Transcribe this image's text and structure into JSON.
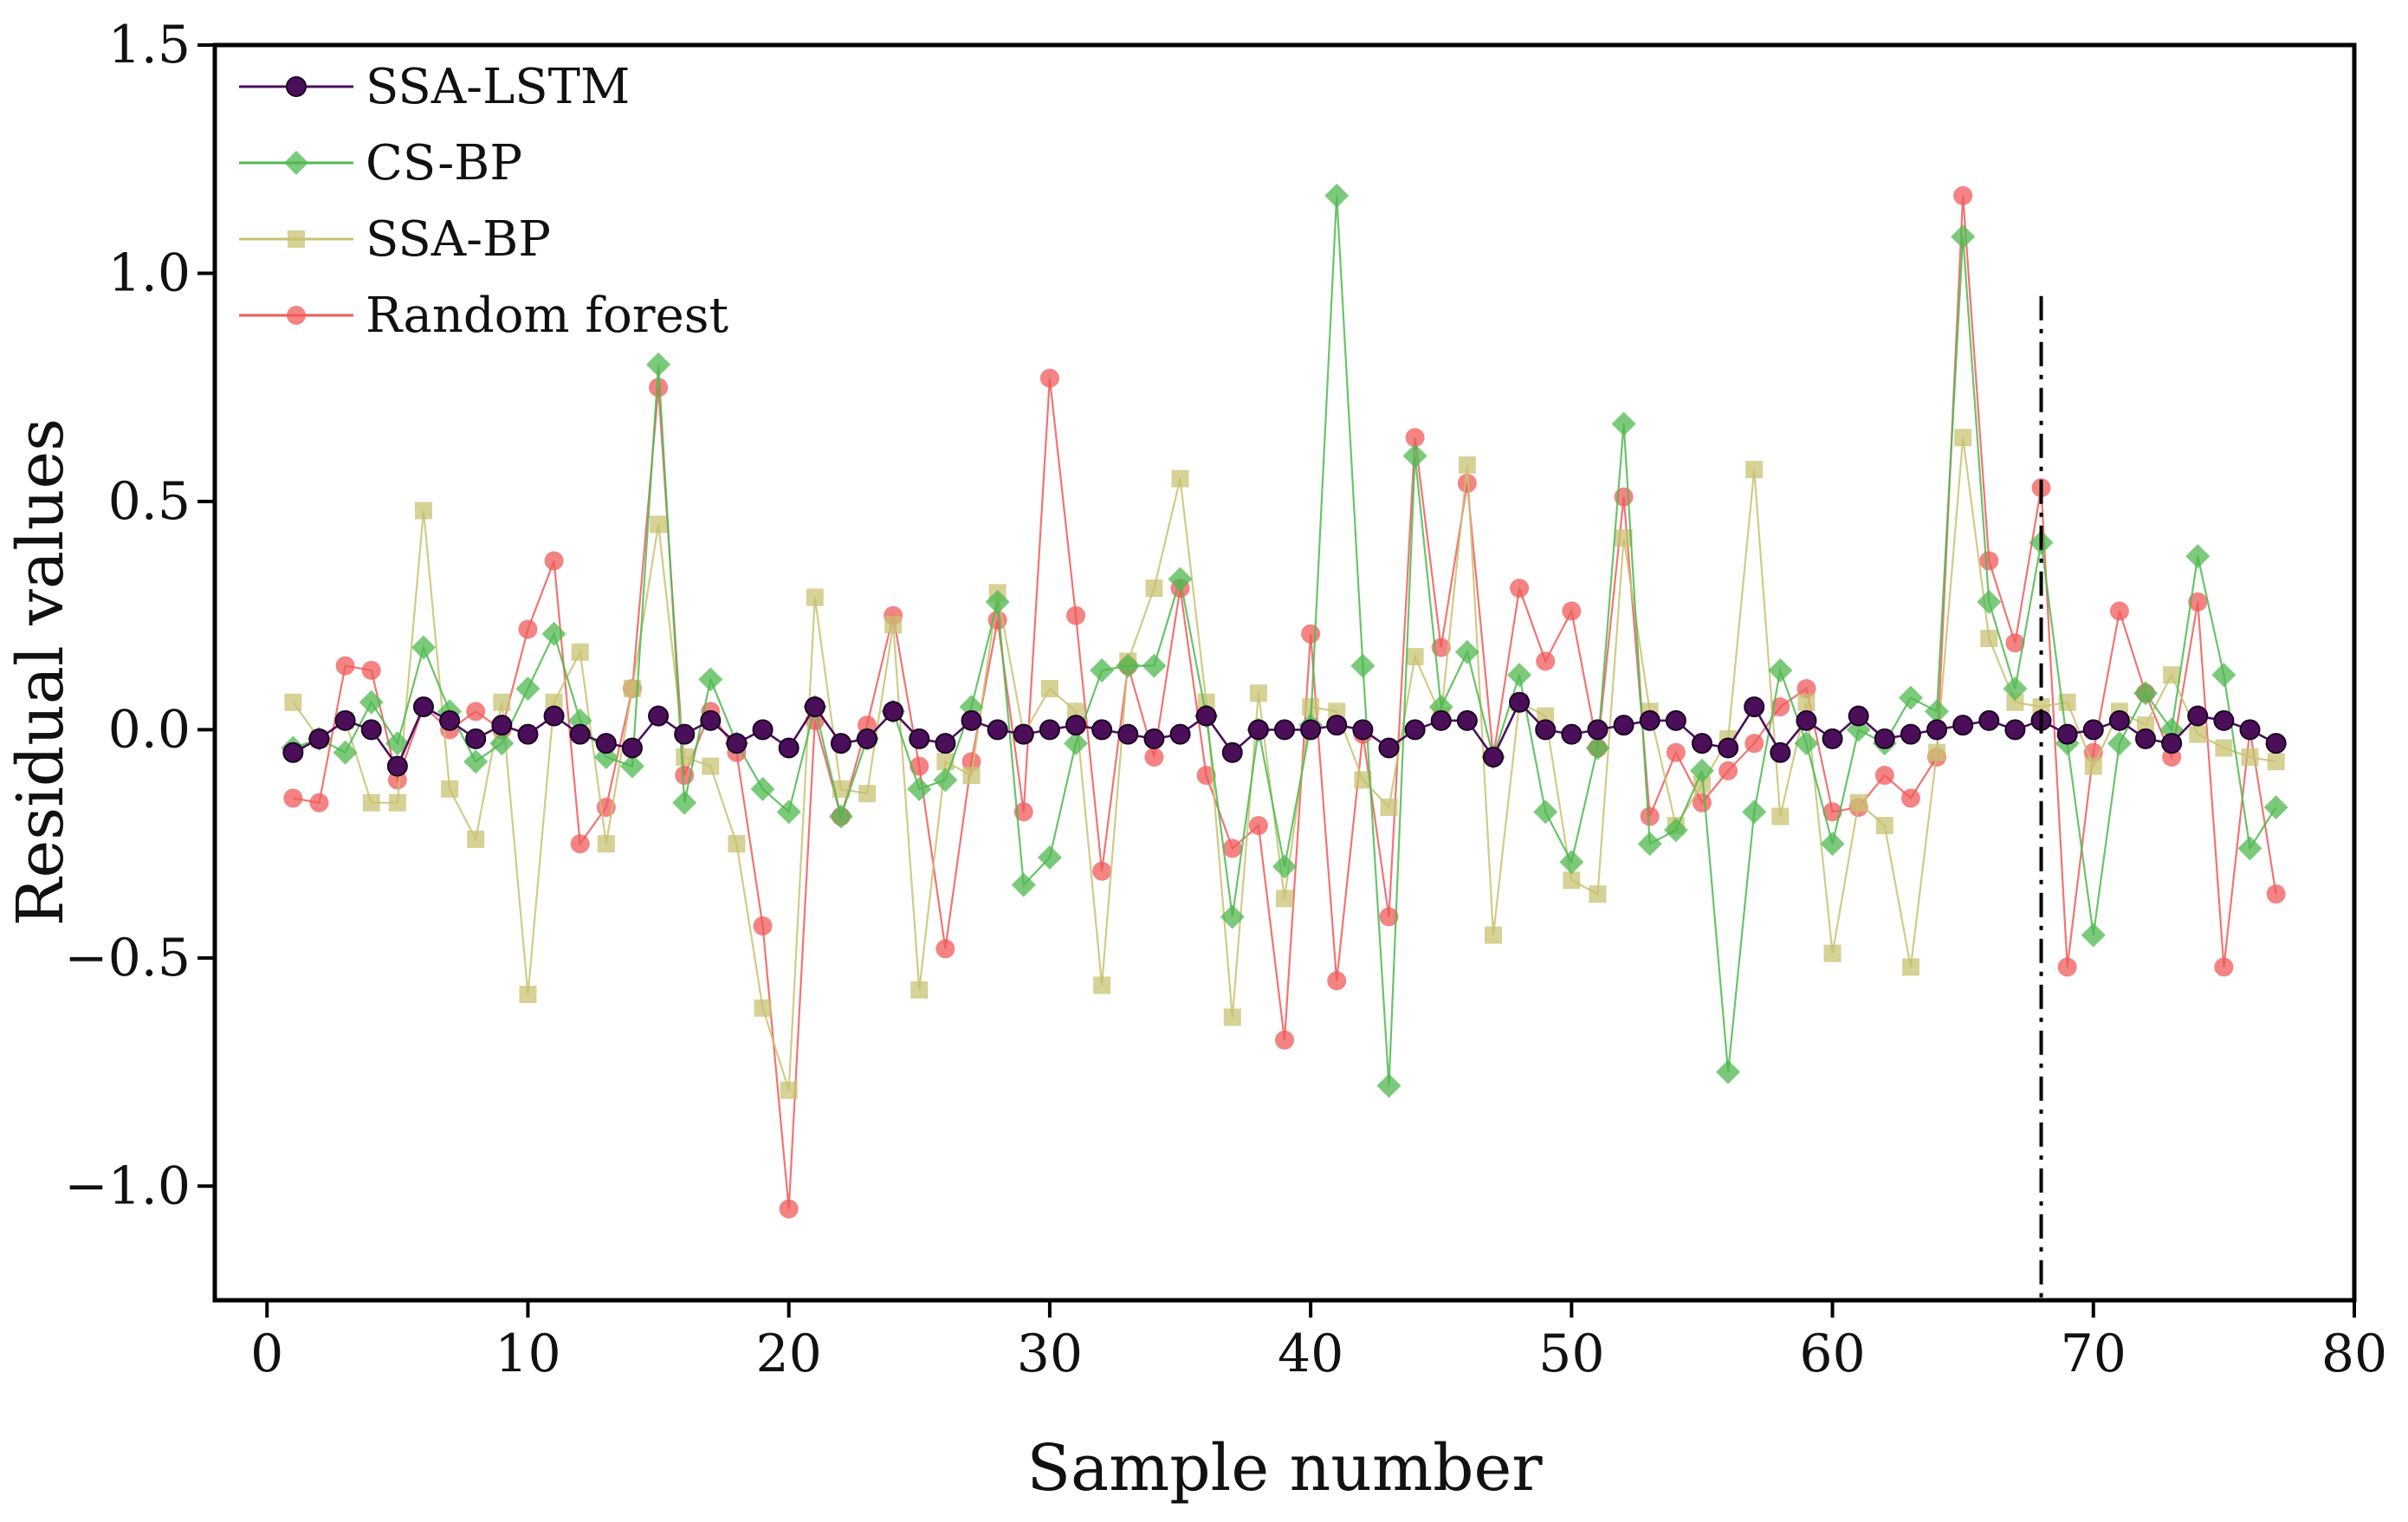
{
  "chart_data": {
    "type": "line",
    "title": "",
    "xlabel": "Sample number",
    "ylabel": "Residual values",
    "xlim": [
      -2,
      80
    ],
    "ylim": [
      -1.25,
      1.5
    ],
    "xticks": [
      0,
      10,
      20,
      30,
      40,
      50,
      60,
      70,
      80
    ],
    "yticks": [
      -1.0,
      -0.5,
      0.0,
      0.5,
      1.0,
      1.5
    ],
    "xtick_labels": [
      "0",
      "10",
      "20",
      "30",
      "40",
      "50",
      "60",
      "70",
      "80"
    ],
    "ytick_labels": [
      "−1.0",
      "−0.5",
      "0.0",
      "0.5",
      "1.0",
      "1.5"
    ],
    "grid": false,
    "legend_position": "top-left",
    "vline": {
      "x": 68,
      "style": "dash-dot",
      "y_top": 0.95
    },
    "x": [
      1,
      2,
      3,
      4,
      5,
      6,
      7,
      8,
      9,
      10,
      11,
      12,
      13,
      14,
      15,
      16,
      17,
      18,
      19,
      20,
      21,
      22,
      23,
      24,
      25,
      26,
      27,
      28,
      29,
      30,
      31,
      32,
      33,
      34,
      35,
      36,
      37,
      38,
      39,
      40,
      41,
      42,
      43,
      44,
      45,
      46,
      47,
      48,
      49,
      50,
      51,
      52,
      53,
      54,
      55,
      56,
      57,
      58,
      59,
      60,
      61,
      62,
      63,
      64,
      65,
      66,
      67,
      68,
      69,
      70,
      71,
      72,
      73,
      74,
      75,
      76,
      77
    ],
    "series": [
      {
        "name": "SSA-LSTM",
        "color": "#4b0f5a",
        "marker": "circle",
        "values": [
          -0.05,
          -0.02,
          0.02,
          0.0,
          -0.08,
          0.05,
          0.02,
          -0.02,
          0.01,
          -0.01,
          0.03,
          -0.01,
          -0.03,
          -0.04,
          0.03,
          -0.01,
          0.02,
          -0.03,
          0.0,
          -0.04,
          0.05,
          -0.03,
          -0.02,
          0.04,
          -0.02,
          -0.03,
          0.02,
          0.0,
          -0.01,
          0.0,
          0.01,
          0.0,
          -0.01,
          -0.02,
          -0.01,
          0.03,
          -0.05,
          0.0,
          0.0,
          0.0,
          0.01,
          0.0,
          -0.04,
          0.0,
          0.02,
          0.02,
          -0.06,
          0.06,
          0.0,
          -0.01,
          0.0,
          0.01,
          0.02,
          0.02,
          -0.03,
          -0.04,
          0.05,
          -0.05,
          0.02,
          -0.02,
          0.03,
          -0.02,
          -0.01,
          0.0,
          0.01,
          0.02,
          0.0,
          0.02,
          -0.01,
          0.0,
          0.02,
          -0.02,
          -0.03,
          0.03,
          0.02,
          0.0,
          -0.03
        ]
      },
      {
        "name": "CS-BP",
        "color": "#4fb84f",
        "marker": "diamond",
        "values": [
          -0.04,
          -0.02,
          -0.05,
          0.06,
          -0.03,
          0.18,
          0.04,
          -0.07,
          -0.03,
          0.09,
          0.21,
          0.02,
          -0.06,
          -0.08,
          0.8,
          -0.16,
          0.11,
          -0.03,
          -0.13,
          -0.18,
          0.05,
          -0.19,
          -0.02,
          0.04,
          -0.13,
          -0.11,
          0.05,
          0.28,
          -0.34,
          -0.28,
          -0.03,
          0.13,
          0.14,
          0.14,
          0.33,
          0.03,
          -0.41,
          0.0,
          -0.3,
          0.01,
          1.17,
          0.14,
          -0.78,
          0.6,
          0.05,
          0.17,
          -0.06,
          0.12,
          -0.18,
          -0.29,
          -0.04,
          0.67,
          -0.25,
          -0.22,
          -0.09,
          -0.75,
          -0.18,
          0.13,
          -0.03,
          -0.25,
          0.0,
          -0.03,
          0.07,
          0.04,
          1.08,
          0.28,
          0.09,
          0.41,
          -0.03,
          -0.45,
          -0.03,
          0.08,
          0.0,
          0.38,
          0.12,
          -0.26,
          -0.17
        ]
      },
      {
        "name": "SSA-BP",
        "color": "#c8c272",
        "marker": "square",
        "values": [
          0.06,
          -0.02,
          0.02,
          -0.16,
          -0.16,
          0.48,
          -0.13,
          -0.24,
          0.06,
          -0.58,
          0.06,
          0.17,
          -0.25,
          0.09,
          0.45,
          -0.06,
          -0.08,
          -0.25,
          -0.61,
          -0.79,
          0.29,
          -0.13,
          -0.14,
          0.23,
          -0.57,
          -0.07,
          -0.1,
          0.3,
          -0.01,
          0.09,
          0.04,
          -0.56,
          0.15,
          0.31,
          0.55,
          0.06,
          -0.63,
          0.08,
          -0.37,
          0.05,
          0.04,
          -0.11,
          -0.17,
          0.16,
          0.03,
          0.58,
          -0.45,
          0.06,
          0.03,
          -0.33,
          -0.36,
          0.42,
          0.04,
          -0.21,
          -0.12,
          -0.02,
          0.57,
          -0.19,
          0.06,
          -0.49,
          -0.16,
          -0.21,
          -0.52,
          -0.05,
          0.64,
          0.2,
          0.06,
          0.05,
          0.06,
          -0.08,
          0.04,
          0.01,
          0.12,
          -0.01,
          -0.04,
          -0.06,
          -0.07
        ]
      },
      {
        "name": "Random forest",
        "color": "#f05a5a",
        "marker": "circle",
        "values": [
          -0.15,
          -0.16,
          0.14,
          0.13,
          -0.11,
          0.05,
          0.0,
          0.04,
          0.0,
          0.22,
          0.37,
          -0.25,
          -0.17,
          0.09,
          0.75,
          -0.1,
          0.04,
          -0.05,
          -0.43,
          -1.05,
          0.02,
          -0.19,
          0.01,
          0.25,
          -0.08,
          -0.48,
          -0.07,
          0.24,
          -0.18,
          0.77,
          0.25,
          -0.31,
          0.14,
          -0.06,
          0.31,
          -0.1,
          -0.26,
          -0.21,
          -0.68,
          0.21,
          -0.55,
          -0.01,
          -0.41,
          0.64,
          0.18,
          0.54,
          -0.06,
          0.31,
          0.15,
          0.26,
          -0.04,
          0.51,
          -0.19,
          -0.05,
          -0.16,
          -0.09,
          -0.03,
          0.05,
          0.09,
          -0.18,
          -0.17,
          -0.1,
          -0.15,
          -0.06,
          1.17,
          0.37,
          0.19,
          0.53,
          -0.52,
          -0.05,
          0.26,
          0.08,
          -0.06,
          0.28,
          -0.52,
          0.0,
          -0.36
        ]
      }
    ]
  }
}
